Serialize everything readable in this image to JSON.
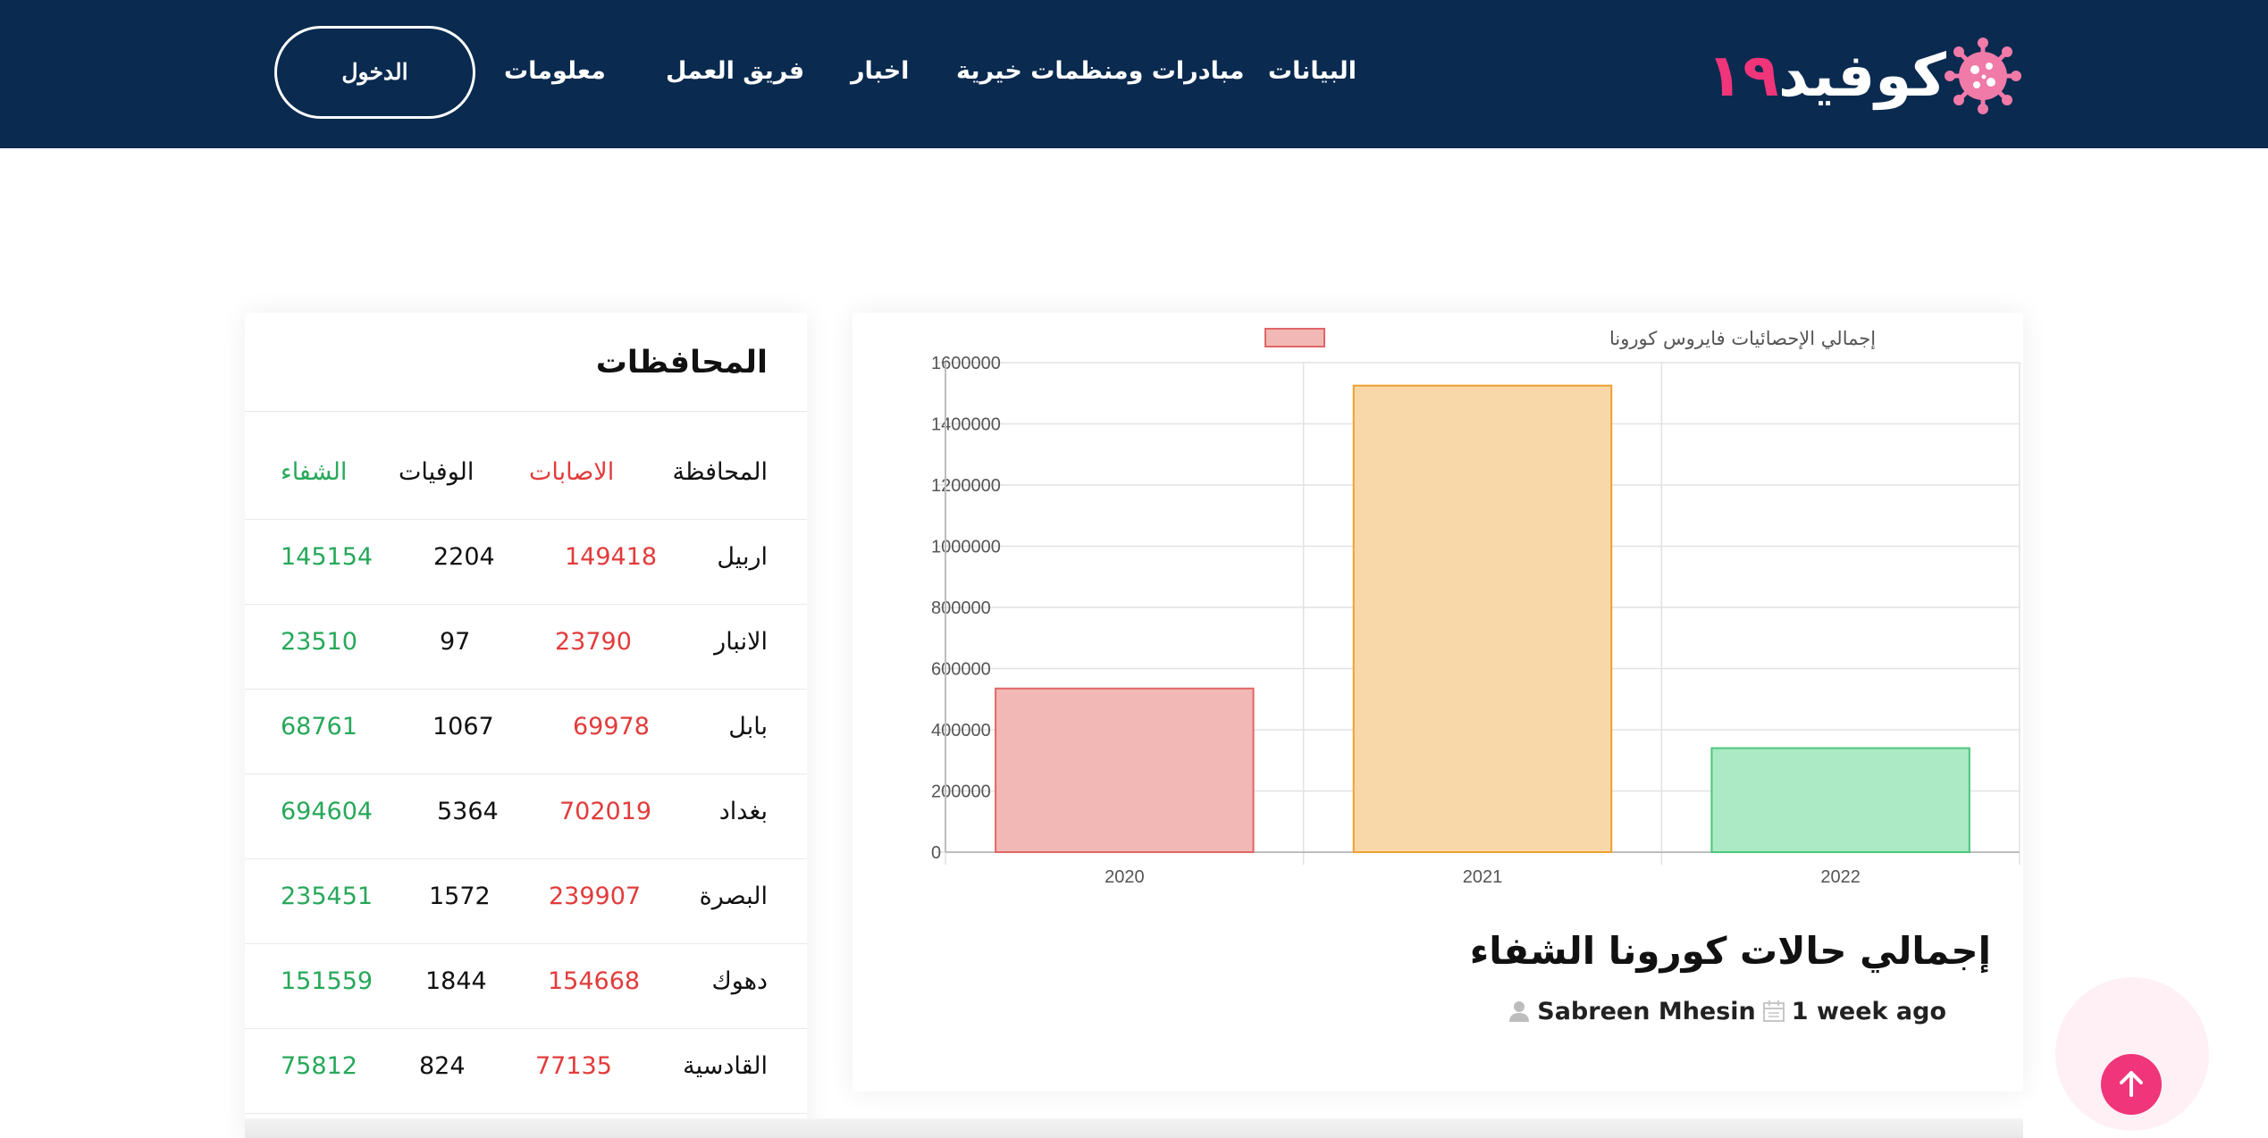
{
  "header": {
    "logo": {
      "text": "كوفيد",
      "number": "١٩",
      "icon": "virus-icon"
    },
    "nav": {
      "data": "البيانات",
      "initiatives": "مبادرات ومنظمات خيرية",
      "news": "اخبار",
      "team": "فريق العمل",
      "info": "معلومات"
    },
    "login_label": "الدخول"
  },
  "provinces": {
    "title": "المحافظات",
    "columns": {
      "province": "المحافظة",
      "cases": "الاصابات",
      "deaths": "الوفيات",
      "recovered": "الشفاء"
    },
    "rows": [
      {
        "name": "اربيل",
        "cases": "149418",
        "deaths": "2204",
        "recovered": "145154"
      },
      {
        "name": "الانبار",
        "cases": "23790",
        "deaths": "97",
        "recovered": "23510"
      },
      {
        "name": "بابل",
        "cases": "69978",
        "deaths": "1067",
        "recovered": "68761"
      },
      {
        "name": "بغداد",
        "cases": "702019",
        "deaths": "5364",
        "recovered": "694604"
      },
      {
        "name": "البصرة",
        "cases": "239907",
        "deaths": "1572",
        "recovered": "235451"
      },
      {
        "name": "دهوك",
        "cases": "154668",
        "deaths": "1844",
        "recovered": "151559"
      },
      {
        "name": "القادسية",
        "cases": "77135",
        "deaths": "824",
        "recovered": "75812"
      }
    ]
  },
  "chart_data": {
    "type": "bar",
    "title": "",
    "xlabel": "",
    "ylabel": "",
    "legend": {
      "label": "إجمالي الإحصائيات فايروس كورونا",
      "position": "top-center"
    },
    "categories": [
      "2020",
      "2021",
      "2022"
    ],
    "series": [
      {
        "name": "إجمالي الإحصائيات فايروس كورونا",
        "values": [
          535000,
          1525000,
          340000
        ]
      }
    ],
    "ylim": [
      0,
      1600000
    ],
    "yticks": [
      "0",
      "200000",
      "400000",
      "600000",
      "800000",
      "1000000",
      "1200000",
      "1400000",
      "1600000"
    ],
    "grid": true,
    "colors": {
      "fills": [
        "#f2b8b5",
        "#f8d8a8",
        "#ace9c5"
      ],
      "borders": [
        "#e06666",
        "#f0a030",
        "#4bc77d"
      ]
    }
  },
  "post": {
    "title": "إجمالي حالات كورونا الشفاء",
    "time": "1 week ago",
    "author": "Sabreen Mhesin",
    "calendar_icon": "calendar-icon",
    "user_icon": "user-icon"
  },
  "scroll_top_icon": "arrow-up-icon",
  "colors": {
    "header_bg": "#0a2a4f",
    "accent": "#f0357a",
    "cases": "#e23b3b",
    "recovered": "#27a85a"
  }
}
